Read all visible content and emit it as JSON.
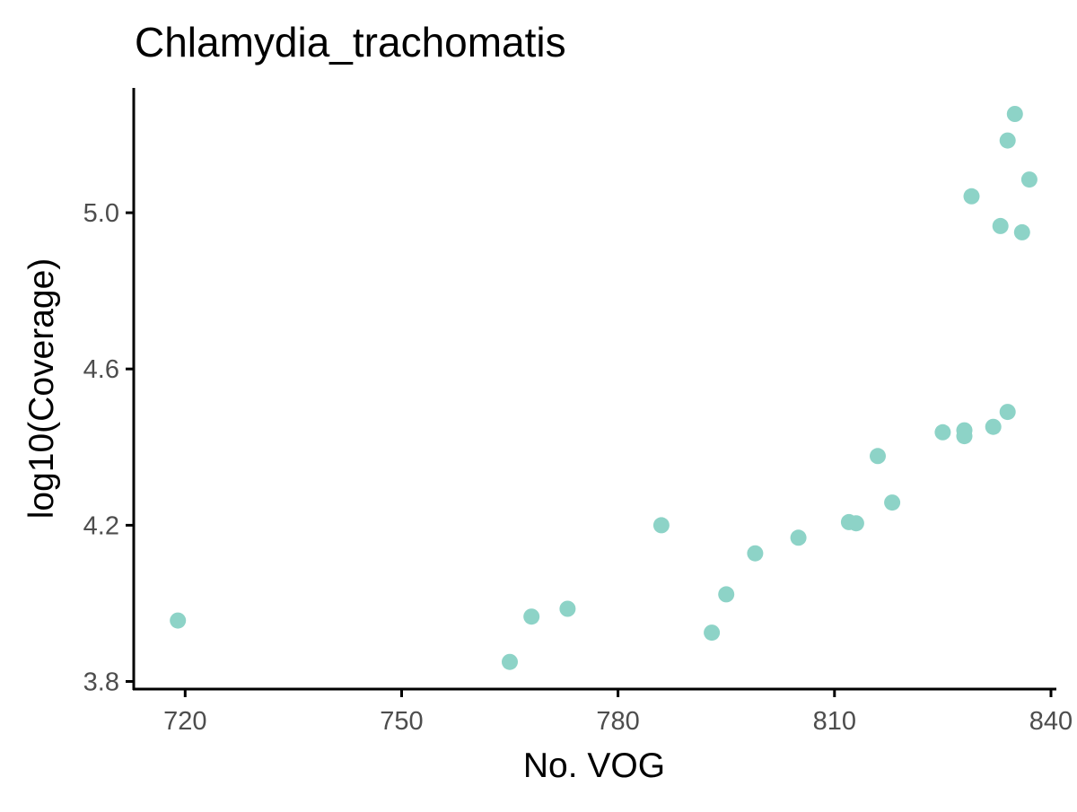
{
  "chart_data": {
    "type": "scatter",
    "title": "Chlamydia_trachomatis",
    "xlabel": "No. VOG",
    "ylabel": "log10(Coverage)",
    "xlim": [
      713,
      840.5
    ],
    "ylim": [
      3.785,
      5.315
    ],
    "xticks": [
      720,
      750,
      780,
      810,
      840
    ],
    "yticks": [
      3.8,
      4.2,
      4.6,
      5.0
    ],
    "xtick_labels": [
      "720",
      "750",
      "780",
      "810",
      "840"
    ],
    "ytick_labels": [
      "3.8",
      "4.2",
      "4.6",
      "5.0"
    ],
    "grid": false,
    "legend": "none",
    "point_color": "#8dd3c7",
    "points": [
      {
        "x": 719,
        "y": 3.956
      },
      {
        "x": 765,
        "y": 3.85
      },
      {
        "x": 768,
        "y": 3.966
      },
      {
        "x": 773,
        "y": 3.986
      },
      {
        "x": 786,
        "y": 4.2
      },
      {
        "x": 793,
        "y": 3.925
      },
      {
        "x": 795,
        "y": 4.023
      },
      {
        "x": 799,
        "y": 4.128
      },
      {
        "x": 805,
        "y": 4.168
      },
      {
        "x": 812,
        "y": 4.208
      },
      {
        "x": 813,
        "y": 4.205
      },
      {
        "x": 816,
        "y": 4.377
      },
      {
        "x": 818,
        "y": 4.258
      },
      {
        "x": 825,
        "y": 4.438
      },
      {
        "x": 828,
        "y": 4.428
      },
      {
        "x": 828,
        "y": 4.443
      },
      {
        "x": 829,
        "y": 5.042
      },
      {
        "x": 832,
        "y": 4.452
      },
      {
        "x": 833,
        "y": 4.966
      },
      {
        "x": 834,
        "y": 4.49
      },
      {
        "x": 834,
        "y": 5.185
      },
      {
        "x": 835,
        "y": 5.253
      },
      {
        "x": 836,
        "y": 4.95
      },
      {
        "x": 837,
        "y": 5.085
      }
    ]
  }
}
